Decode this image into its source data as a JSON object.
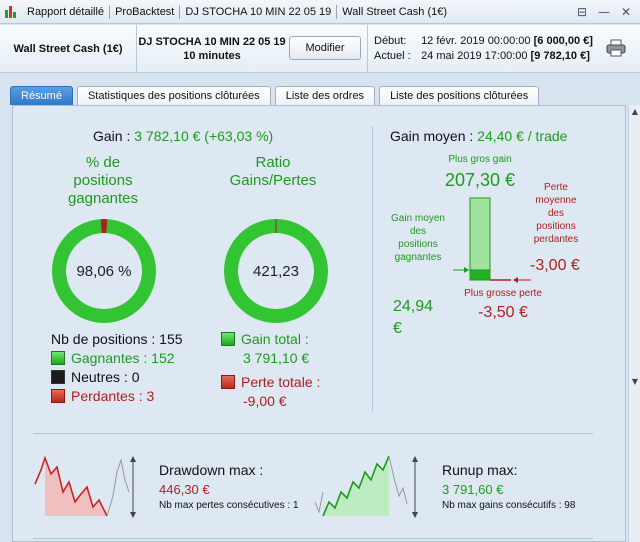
{
  "titlebar": {
    "crumbs": [
      "Rapport détaillé",
      "ProBacktest",
      "DJ STOCHA 10 MIN 22 05 19",
      "Wall Street Cash (1€)"
    ],
    "buttons": [
      "⊟",
      "—",
      "✕"
    ]
  },
  "header": {
    "instrument": "Wall Street Cash (1€)",
    "strategy_name": "DJ STOCHA 10 MIN 22 05 19",
    "timeframe": "10 minutes",
    "modify_label": "Modifier",
    "start_label": "Début:",
    "start_date": "12 févr. 2019 00:00:00",
    "start_value": "[6 000,00 €]",
    "current_label": "Actuel :",
    "current_date": "24 mai 2019 17:00:00",
    "current_value": "[9 782,10 €]"
  },
  "tabs": [
    "Résumé",
    "Statistiques des positions clôturées",
    "Liste des ordres",
    "Liste des positions clôturées"
  ],
  "summary": {
    "gain_label": "Gain :",
    "gain_value": "3 782,10 € (+63,03 %)",
    "winning_pct_title": [
      "% de",
      "positions",
      "gagnantes"
    ],
    "winning_pct_value": "98,06 %",
    "winning_pct": 98.06,
    "ratio_title": [
      "Ratio",
      "Gains/Pertes"
    ],
    "ratio_value": "421,23",
    "ratio_fraction": 0.9976,
    "nb_positions_label": "Nb de positions : 155",
    "winners_label": "Gagnantes : 152",
    "neutral_label": "Neutres : 0",
    "losers_label": "Perdantes : 3",
    "gain_total_label": "Gain total :",
    "gain_total_value": "3 791,10 €",
    "loss_total_label": "Perte totale :",
    "loss_total_value": "-9,00 €"
  },
  "avg_gain": {
    "label": "Gain moyen :",
    "value": "24,40 € / trade",
    "largest_gain_label": "Plus gros gain",
    "largest_gain_value": "207,30 €",
    "avg_win_label": [
      "Gain moyen",
      "des",
      "positions",
      "gagnantes"
    ],
    "avg_win_value": "24,94 €",
    "avg_loss_label": [
      "Perte",
      "moyenne",
      "des",
      "positions",
      "perdantes"
    ],
    "avg_loss_value": "-3,00 €",
    "largest_loss_label": "Plus grosse perte",
    "largest_loss_value": "-3,50 €"
  },
  "drawdown": {
    "title": "Drawdown max :",
    "value": "446,30 €",
    "sub": "Nb max pertes consécutives : 1"
  },
  "runup": {
    "title": "Runup max:",
    "value": "3 791,60 €",
    "sub": "Nb max gains consécutifs : 98"
  },
  "colors": {
    "green": "#1e9a1e",
    "red": "#b02020",
    "accent": "#2f78c8"
  }
}
